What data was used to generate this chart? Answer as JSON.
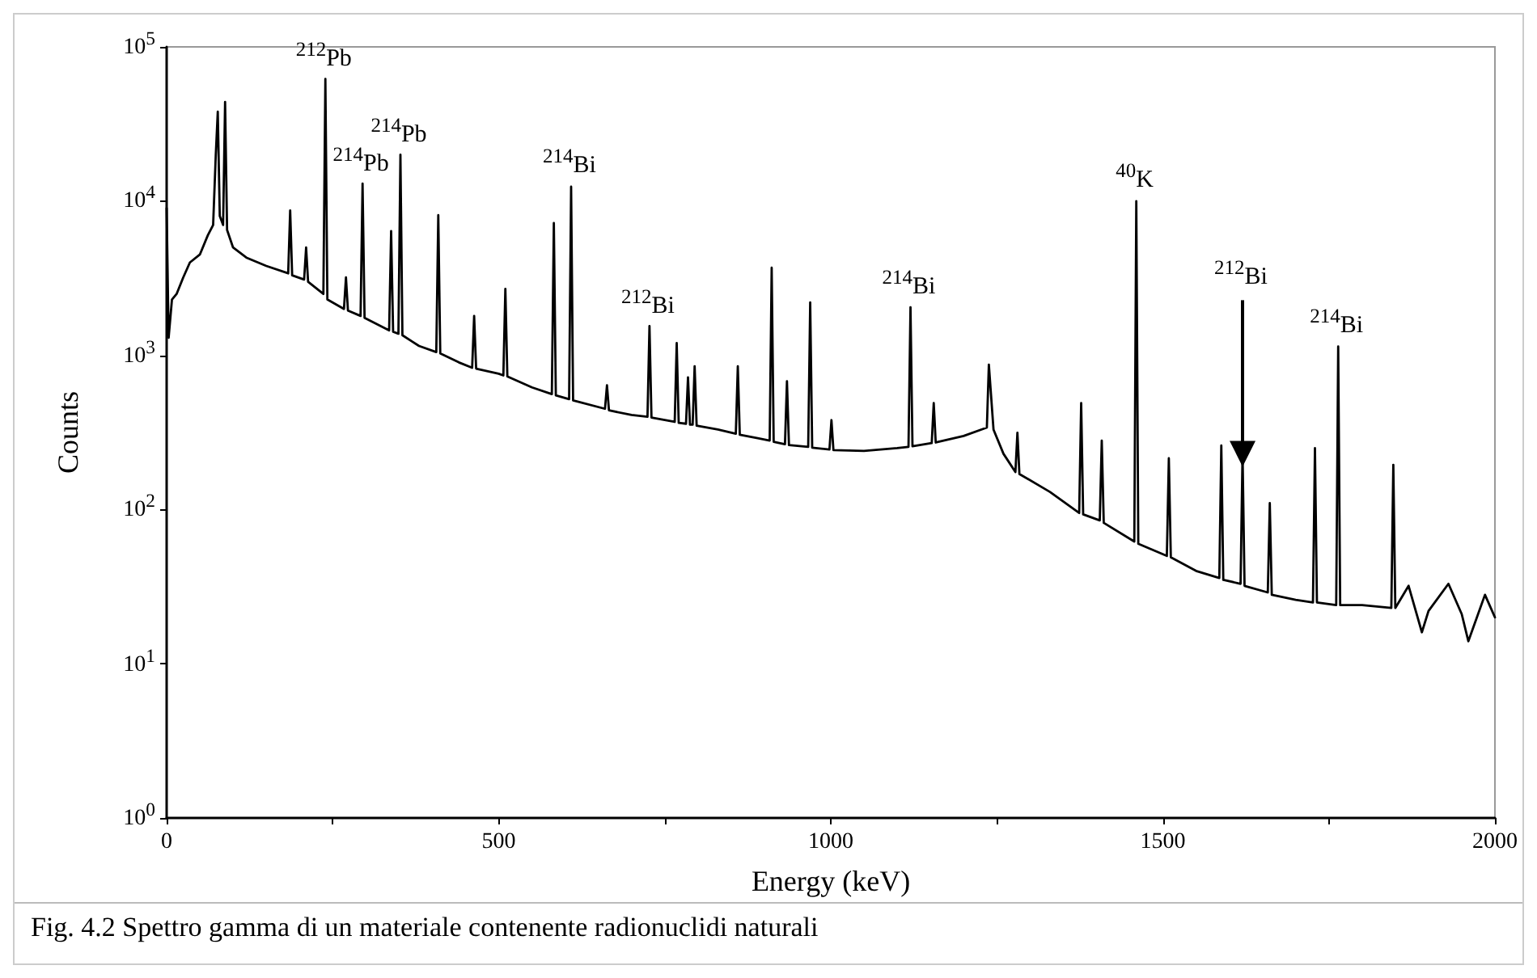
{
  "chart_data": {
    "type": "line",
    "xlabel": "Energy (keV)",
    "ylabel": "Counts",
    "log": "y",
    "grid": false,
    "marker": "none",
    "line_style": "solid",
    "xlim": [
      0,
      2000
    ],
    "xticks": [
      0,
      {
        "value": 250,
        "label": null
      },
      500,
      {
        "value": 750,
        "label": null
      },
      1000,
      {
        "value": 1250,
        "label": null
      },
      1500,
      {
        "value": 1750,
        "label": null
      },
      2000
    ],
    "ylim": [
      1,
      100000
    ],
    "yticks": [
      {
        "value": 1,
        "label": "10$^{0}$"
      },
      {
        "value": 10,
        "label": "10$^{1}$"
      },
      {
        "value": 100,
        "label": "10$^{2}$"
      },
      {
        "value": 1000,
        "label": "10$^{3}$"
      },
      {
        "value": 10000,
        "label": "10$^{4}$"
      },
      {
        "value": 100000,
        "label": "10$^{5}$"
      }
    ],
    "series": [
      {
        "color": "#000000",
        "x": [
          0,
          3,
          8,
          15,
          25,
          35,
          50,
          62,
          70,
          74,
          77,
          80,
          85,
          88,
          91,
          100,
          120,
          150,
          183,
          186,
          189,
          207,
          210,
          213,
          236,
          239,
          242,
          267,
          270,
          273,
          292,
          295,
          298,
          335,
          338,
          341,
          349,
          352,
          355,
          380,
          406,
          409,
          412,
          440,
          460,
          463,
          466,
          500,
          507,
          510,
          513,
          550,
          580,
          583,
          586,
          606,
          609,
          612,
          660,
          663,
          666,
          700,
          724,
          727,
          730,
          765,
          768,
          771,
          782,
          785,
          788,
          792,
          795,
          798,
          830,
          857,
          860,
          863,
          890,
          908,
          911,
          914,
          931,
          934,
          937,
          966,
          969,
          972,
          998,
          1001,
          1004,
          1050,
          1100,
          1117,
          1120,
          1123,
          1152,
          1155,
          1158,
          1200,
          1235,
          1238,
          1245,
          1260,
          1278,
          1281,
          1284,
          1330,
          1374,
          1377,
          1380,
          1405,
          1408,
          1411,
          1457,
          1460,
          1463,
          1506,
          1509,
          1512,
          1550,
          1585,
          1588,
          1591,
          1617,
          1620,
          1623,
          1658,
          1661,
          1664,
          1700,
          1726,
          1729,
          1732,
          1761,
          1764,
          1767,
          1800,
          1844,
          1847,
          1850,
          1870,
          1890,
          1900,
          1930,
          1950,
          1960,
          1985,
          2000
        ],
        "values": [
          9000,
          1300,
          2300,
          2500,
          3200,
          4000,
          4500,
          6000,
          7000,
          20000,
          38000,
          8000,
          7000,
          44000,
          6500,
          5000,
          4300,
          3800,
          3400,
          8700,
          3300,
          3100,
          5000,
          3000,
          2500,
          62000,
          2300,
          2000,
          3200,
          1950,
          1800,
          13000,
          1750,
          1450,
          6400,
          1420,
          1380,
          20000,
          1350,
          1150,
          1050,
          8100,
          1030,
          900,
          830,
          1800,
          820,
          760,
          740,
          2700,
          730,
          620,
          560,
          7200,
          550,
          520,
          12400,
          510,
          450,
          640,
          440,
          410,
          400,
          1550,
          395,
          370,
          1200,
          365,
          360,
          720,
          355,
          355,
          850,
          350,
          330,
          310,
          850,
          305,
          290,
          280,
          3700,
          275,
          265,
          680,
          262,
          255,
          2200,
          252,
          245,
          380,
          243,
          240,
          250,
          255,
          2050,
          257,
          270,
          490,
          272,
          300,
          340,
          870,
          330,
          230,
          175,
          315,
          170,
          130,
          95,
          490,
          93,
          85,
          280,
          82,
          62,
          10000,
          60,
          50,
          215,
          49,
          40,
          36,
          260,
          35,
          33,
          230,
          32,
          29,
          110,
          28,
          26,
          25,
          250,
          25,
          24,
          1140,
          24,
          24,
          23,
          195,
          23,
          32,
          16,
          22,
          33,
          21,
          14,
          28,
          20
        ]
      }
    ],
    "annotations": [
      {
        "text": "$^{212}$Pb",
        "x": 239,
        "y": 62000
      },
      {
        "text": "$^{214}$Pb",
        "x": 352,
        "y": 20000
      },
      {
        "text": "$^{214}$Pb",
        "x": 295,
        "y": 13000
      },
      {
        "text": "$^{214}$Bi",
        "x": 609,
        "y": 12400
      },
      {
        "text": "$^{212}$Bi",
        "x": 727,
        "y": 1550
      },
      {
        "text": "$^{214}$Bi",
        "x": 1120,
        "y": 2050
      },
      {
        "text": "$^{40}$K",
        "x": 1460,
        "y": 10000
      },
      {
        "text": "$^{212}$Bi",
        "x": 1620,
        "y": 230
      },
      {
        "text": "$^{214}$Bi",
        "x": 1764,
        "y": 1140
      },
      "Fig. 4.2 Spettro gamma di un materiale contenente radionuclidi naturali"
    ]
  }
}
